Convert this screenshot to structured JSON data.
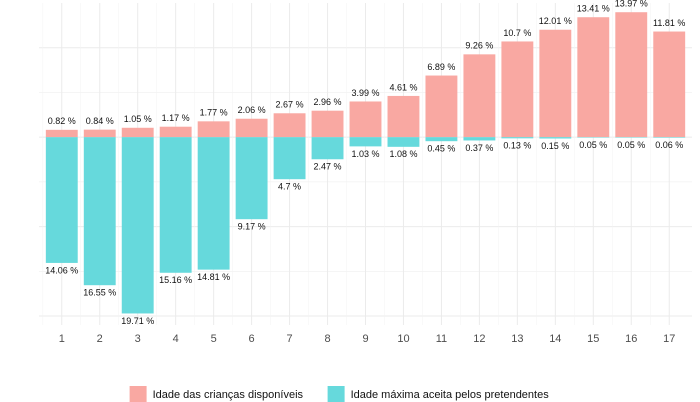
{
  "chart_data": {
    "type": "bar",
    "mode": "diverging",
    "categories": [
      1,
      2,
      3,
      4,
      5,
      6,
      7,
      8,
      9,
      10,
      11,
      12,
      13,
      14,
      15,
      16,
      17
    ],
    "series": [
      {
        "name": "Idade das crianças disponíveis",
        "color": "#f9a8a2",
        "values": [
          0.82,
          0.84,
          1.05,
          1.17,
          1.77,
          2.06,
          2.67,
          2.96,
          3.99,
          4.61,
          6.89,
          9.26,
          10.7,
          12.01,
          13.41,
          13.97,
          11.81
        ],
        "value_labels": [
          "0.82 %",
          "0.84 %",
          "1.05 %",
          "1.17 %",
          "1.77 %",
          "2.06 %",
          "2.67 %",
          "2.96 %",
          "3.99 %",
          "4.61 %",
          "6.89 %",
          "9.26 %",
          "10.7 %",
          "12.01 %",
          "13.41 %",
          "13.97 %",
          "11.81 %"
        ]
      },
      {
        "name": "Idade máxima aceita pelos pretendentes",
        "color": "#66d9dc",
        "values": [
          -14.06,
          -16.55,
          -19.71,
          -15.16,
          -14.81,
          -9.17,
          -4.7,
          -2.47,
          -1.03,
          -1.08,
          -0.45,
          -0.37,
          -0.13,
          -0.15,
          -0.05,
          -0.05,
          -0.06
        ],
        "value_labels": [
          "14.06 %",
          "16.55 %",
          "19.71 %",
          "15.16 %",
          "14.81 %",
          "9.17 %",
          "4.7 %",
          "2.47 %",
          "1.03 %",
          "1.08 %",
          "0.45 %",
          "0.37 %",
          "0.13 %",
          "0.15 %",
          "0.05 %",
          "0.05 %",
          "0.06 %"
        ]
      }
    ],
    "ylim": [
      -21,
      15
    ],
    "yticks": [
      -20,
      -15,
      -10,
      -5,
      0,
      5,
      10
    ],
    "grid": true,
    "legend": "bottom"
  }
}
